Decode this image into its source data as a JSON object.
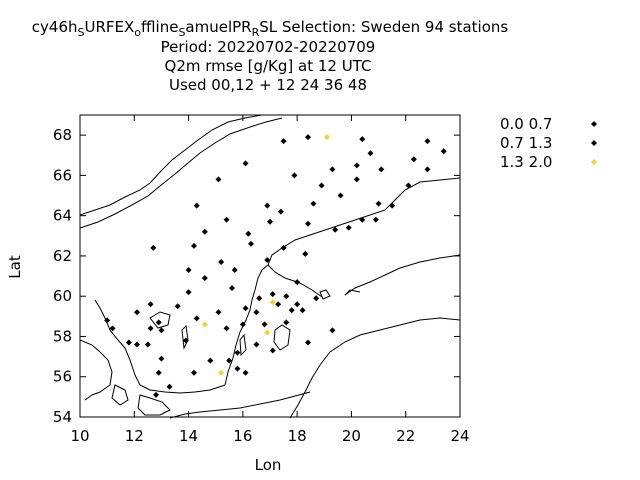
{
  "title_lines": [
    "Used  00,12  + 12 24 36 48"
  ],
  "title_parts": {
    "l1a": "cy46h",
    "l1b": "S",
    "l1c": "URFEX",
    "l1d": "o",
    "l1e": "ffline",
    "l1f": "S",
    "l1g": "amuelPR",
    "l1h": "R",
    "l1i": "SL   Selection: Sweden     94 stations",
    "l2": "Period: 20220702-20220709",
    "l3": "Q2m rmse [g/Kg] at  12 UTC",
    "l4": "Used  00,12  + 12 24 36 48"
  },
  "chart_data": {
    "type": "scatter",
    "xlabel": "Lon",
    "ylabel": "Lat",
    "xlim": [
      10,
      24
    ],
    "ylim": [
      54,
      69
    ],
    "xticks": [
      10,
      12,
      14,
      16,
      18,
      20,
      22,
      24
    ],
    "yticks": [
      54,
      56,
      58,
      60,
      62,
      64,
      66,
      68
    ],
    "grid": false,
    "legend_position": "top-right outside",
    "series": [
      {
        "name": "0.0 0.7",
        "color": "#000000",
        "points": [
          [
            17.5,
            67.7
          ],
          [
            18.4,
            67.9
          ],
          [
            20.4,
            67.8
          ],
          [
            22.8,
            67.7
          ],
          [
            23.4,
            67.2
          ],
          [
            20.7,
            67.1
          ],
          [
            16.1,
            66.6
          ],
          [
            20.2,
            66.5
          ],
          [
            22.3,
            66.8
          ],
          [
            19.3,
            66.3
          ],
          [
            21.1,
            66.3
          ],
          [
            22.8,
            66.3
          ],
          [
            17.9,
            66.0
          ],
          [
            20.2,
            65.8
          ],
          [
            15.1,
            65.8
          ],
          [
            22.1,
            65.5
          ],
          [
            18.9,
            65.5
          ],
          [
            19.6,
            65.0
          ],
          [
            14.3,
            64.5
          ],
          [
            16.9,
            64.5
          ],
          [
            18.6,
            64.6
          ],
          [
            21.0,
            64.6
          ],
          [
            21.5,
            64.5
          ],
          [
            17.4,
            64.2
          ],
          [
            15.4,
            63.8
          ],
          [
            17.0,
            63.7
          ],
          [
            18.4,
            63.6
          ],
          [
            20.4,
            63.8
          ],
          [
            20.9,
            63.8
          ],
          [
            19.4,
            63.3
          ],
          [
            19.9,
            63.4
          ],
          [
            14.6,
            63.2
          ],
          [
            16.2,
            63.1
          ],
          [
            12.7,
            62.4
          ],
          [
            14.2,
            62.5
          ],
          [
            16.3,
            62.6
          ],
          [
            17.5,
            62.4
          ],
          [
            18.3,
            62.1
          ],
          [
            15.2,
            61.7
          ],
          [
            16.9,
            61.8
          ],
          [
            14.0,
            61.3
          ],
          [
            14.6,
            60.9
          ],
          [
            15.7,
            61.3
          ],
          [
            18.0,
            60.7
          ],
          [
            15.6,
            60.4
          ],
          [
            14.0,
            60.2
          ],
          [
            17.1,
            60.1
          ],
          [
            17.6,
            60.0
          ],
          [
            16.6,
            59.9
          ],
          [
            18.7,
            59.9
          ],
          [
            12.6,
            59.6
          ],
          [
            13.6,
            59.5
          ],
          [
            17.3,
            59.6
          ],
          [
            18.0,
            59.6
          ],
          [
            12.1,
            59.2
          ],
          [
            14.3,
            58.9
          ],
          [
            15.1,
            59.2
          ],
          [
            16.1,
            59.4
          ],
          [
            16.5,
            59.2
          ],
          [
            17.8,
            59.3
          ],
          [
            18.2,
            59.3
          ],
          [
            11.0,
            58.8
          ],
          [
            12.9,
            58.7
          ],
          [
            16.8,
            58.6
          ],
          [
            16.0,
            58.6
          ],
          [
            17.6,
            58.7
          ],
          [
            11.2,
            58.4
          ],
          [
            12.6,
            58.4
          ],
          [
            13.0,
            58.3
          ],
          [
            15.4,
            58.4
          ],
          [
            19.3,
            58.3
          ],
          [
            11.8,
            57.7
          ],
          [
            12.1,
            57.6
          ],
          [
            12.5,
            57.6
          ],
          [
            13.9,
            57.8
          ],
          [
            16.5,
            57.6
          ],
          [
            18.4,
            57.7
          ],
          [
            17.1,
            57.3
          ],
          [
            13.0,
            56.9
          ],
          [
            14.8,
            56.8
          ],
          [
            15.5,
            56.8
          ],
          [
            15.8,
            57.2
          ],
          [
            12.9,
            56.2
          ],
          [
            16.1,
            56.2
          ],
          [
            13.3,
            55.5
          ],
          [
            14.2,
            56.2
          ],
          [
            12.8,
            55.1
          ],
          [
            15.8,
            56.4
          ]
        ]
      },
      {
        "name": "0.7 1.3",
        "color": "#000000",
        "points": []
      },
      {
        "name": "1.3 2.0",
        "color": "#f5d03b",
        "points": [
          [
            19.1,
            67.9
          ],
          [
            14.6,
            58.6
          ],
          [
            17.1,
            59.7
          ],
          [
            16.9,
            58.2
          ],
          [
            15.2,
            56.2
          ]
        ]
      }
    ]
  },
  "legend": [
    {
      "label": "0.0 0.7",
      "color": "#000000"
    },
    {
      "label": "0.7 1.3",
      "color": "#000000"
    },
    {
      "label": "1.3 2.0",
      "color": "#f5d03b"
    }
  ]
}
